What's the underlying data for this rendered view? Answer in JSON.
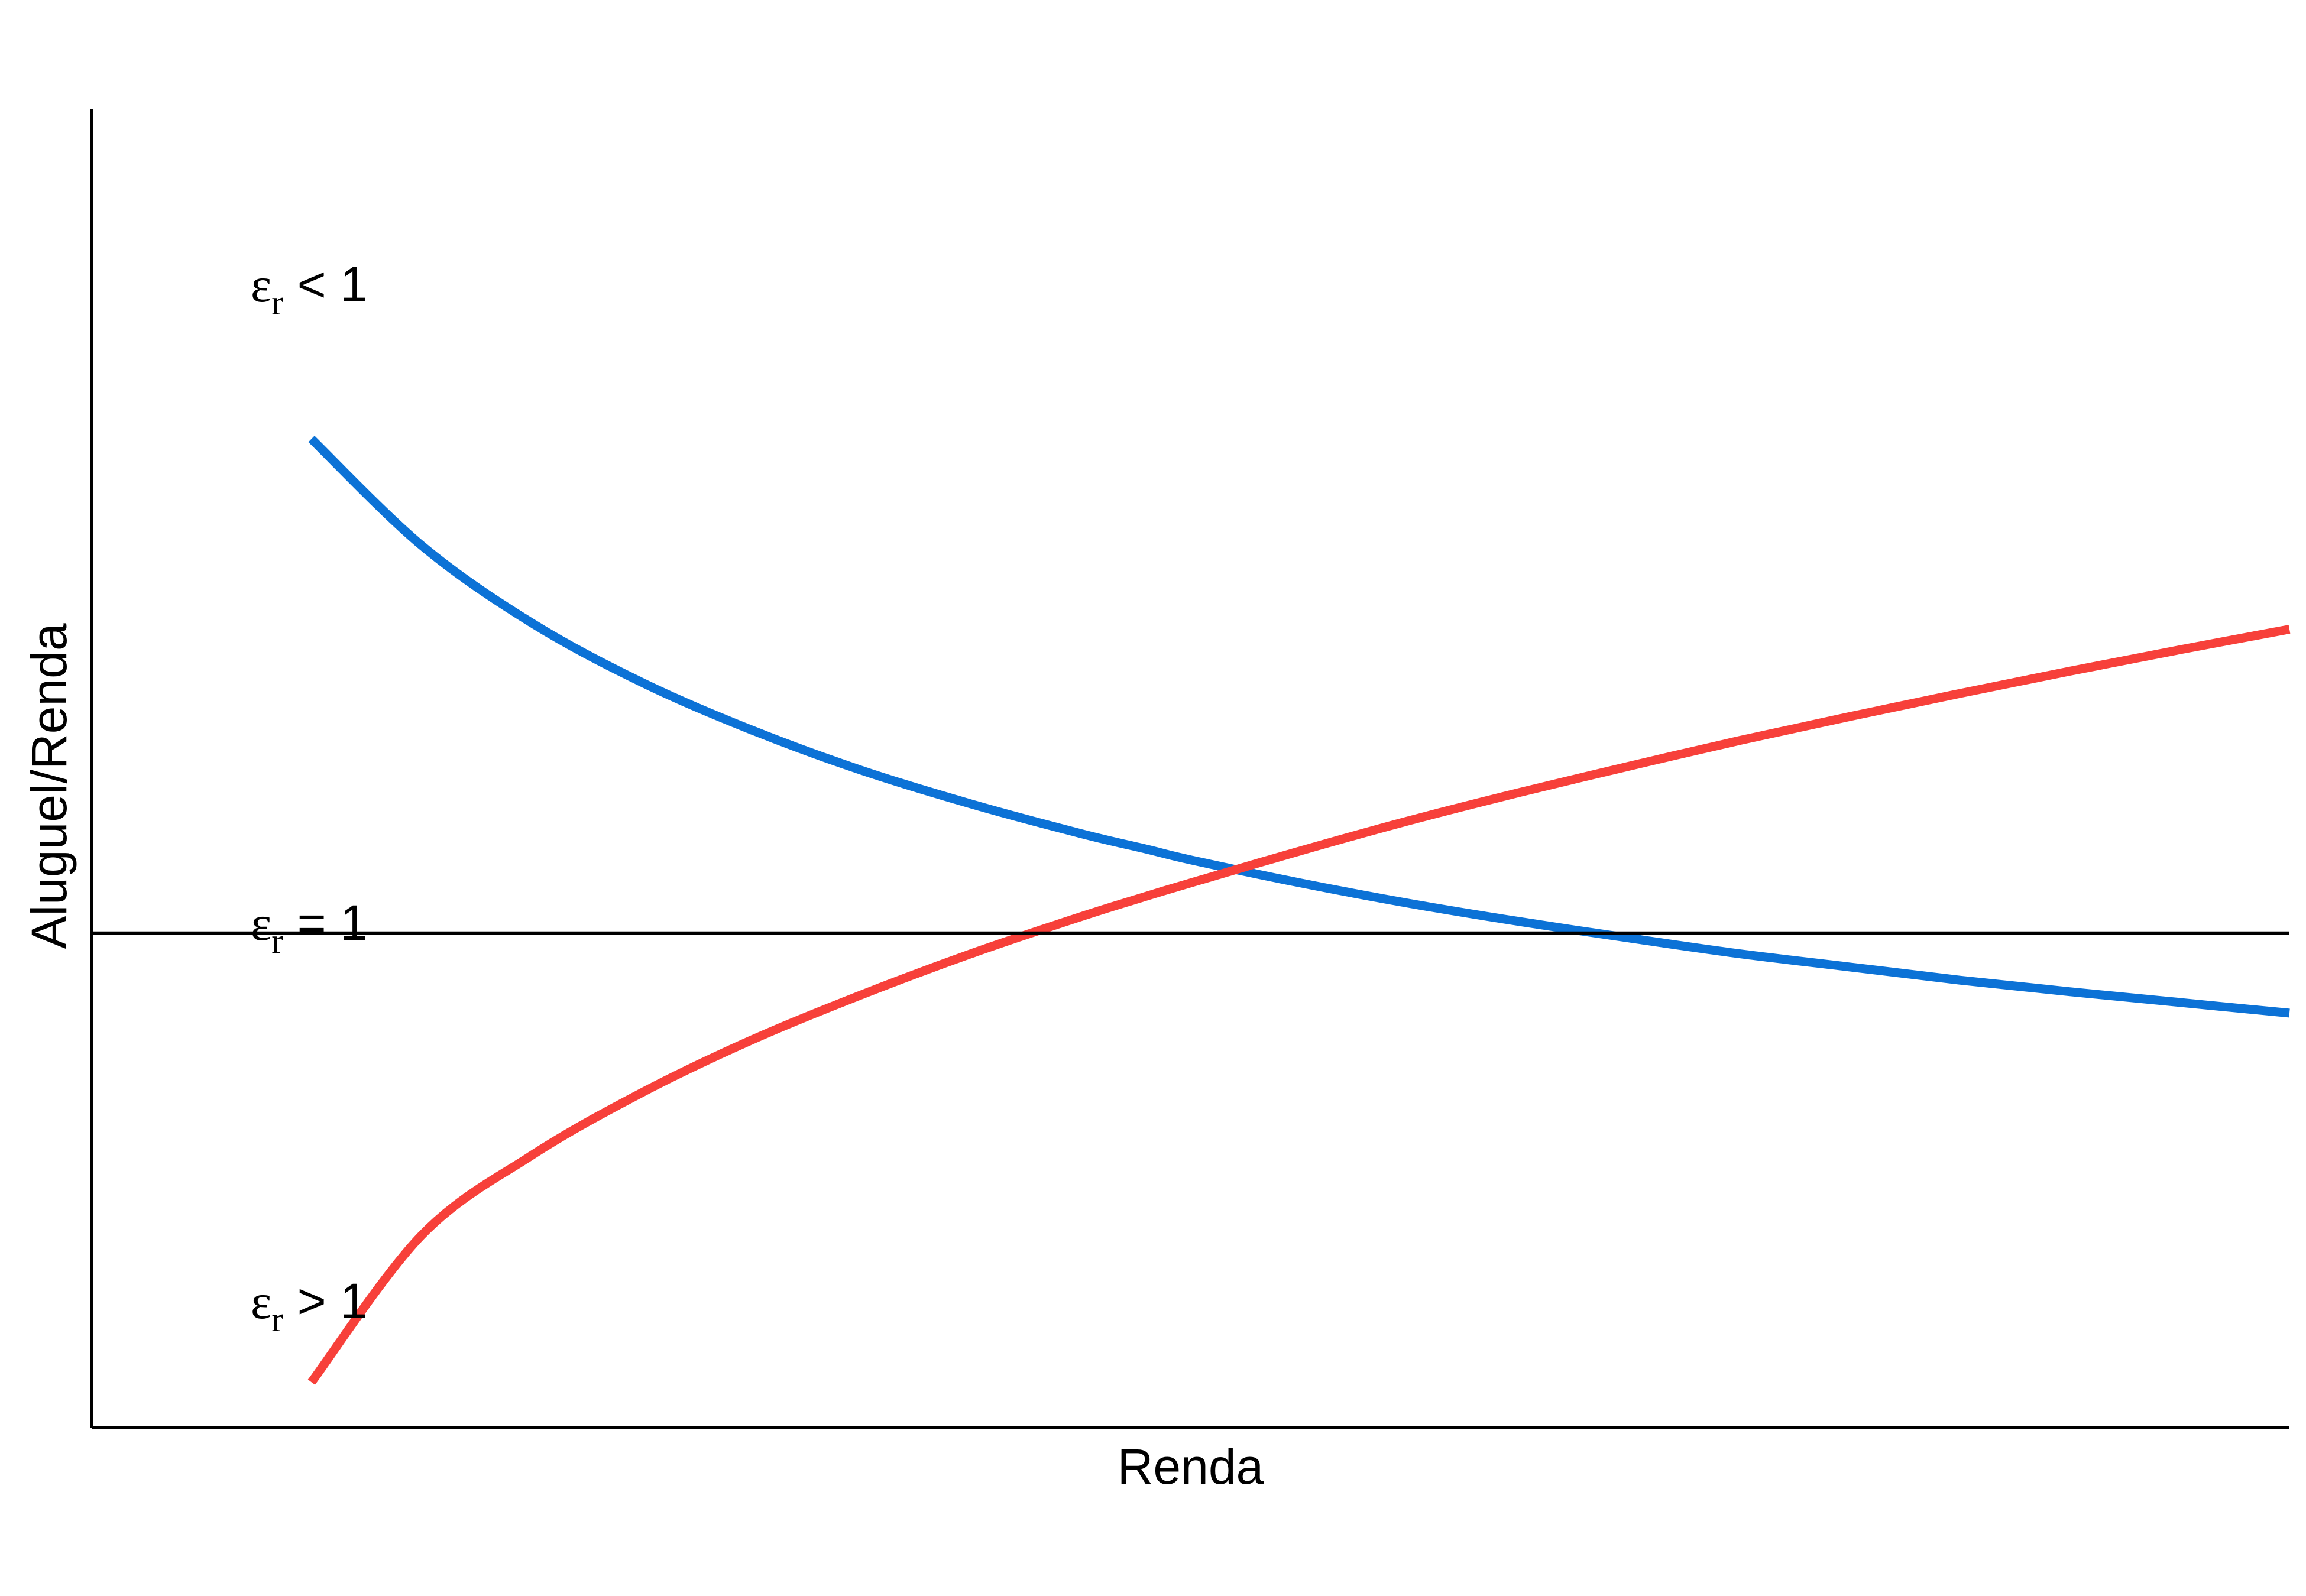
{
  "chart_data": {
    "type": "line",
    "title": "",
    "xlabel": "Renda",
    "ylabel": "Aluguel/Renda",
    "grid": false,
    "legend": "none",
    "xlim": [
      0,
      10
    ],
    "ylim": [
      0,
      1.6
    ],
    "series": [
      {
        "name": "εr < 1",
        "color": "#0c72d6",
        "x": [
          1,
          1.5,
          2,
          2.5,
          3,
          3.5,
          4,
          4.5,
          4.8,
          5,
          5.5,
          6,
          6.5,
          7,
          7.5,
          8,
          8.5,
          9,
          9.5,
          10
        ],
        "y": [
          1.2,
          1.071,
          0.977,
          0.905,
          0.847,
          0.798,
          0.757,
          0.721,
          0.702,
          0.689,
          0.661,
          0.636,
          0.614,
          0.594,
          0.575,
          0.559,
          0.543,
          0.529,
          0.516,
          0.503
        ]
      },
      {
        "name": "εr > 1",
        "color": "#f7403a",
        "x": [
          1,
          1.5,
          2,
          2.5,
          3,
          3.5,
          4,
          4.5,
          4.8,
          5,
          5.5,
          6,
          6.5,
          7,
          7.5,
          8,
          8.5,
          9,
          9.5,
          10
        ],
        "y": [
          0.055,
          0.233,
          0.33,
          0.406,
          0.47,
          0.525,
          0.575,
          0.62,
          0.645,
          0.661,
          0.7,
          0.737,
          0.771,
          0.803,
          0.834,
          0.863,
          0.891,
          0.918,
          0.944,
          0.969
        ]
      },
      {
        "name": "εr = 1",
        "color": "#000000",
        "x": [
          0,
          10
        ],
        "y": [
          0.6,
          0.6
        ]
      }
    ],
    "annotations": [
      {
        "symbol": "ε",
        "sub": "r",
        "rel": " < 1",
        "series": 0
      },
      {
        "symbol": "ε",
        "sub": "r",
        "rel": " = 1",
        "series": 2
      },
      {
        "symbol": "ε",
        "sub": "r",
        "rel": " > 1",
        "series": 1
      }
    ]
  }
}
